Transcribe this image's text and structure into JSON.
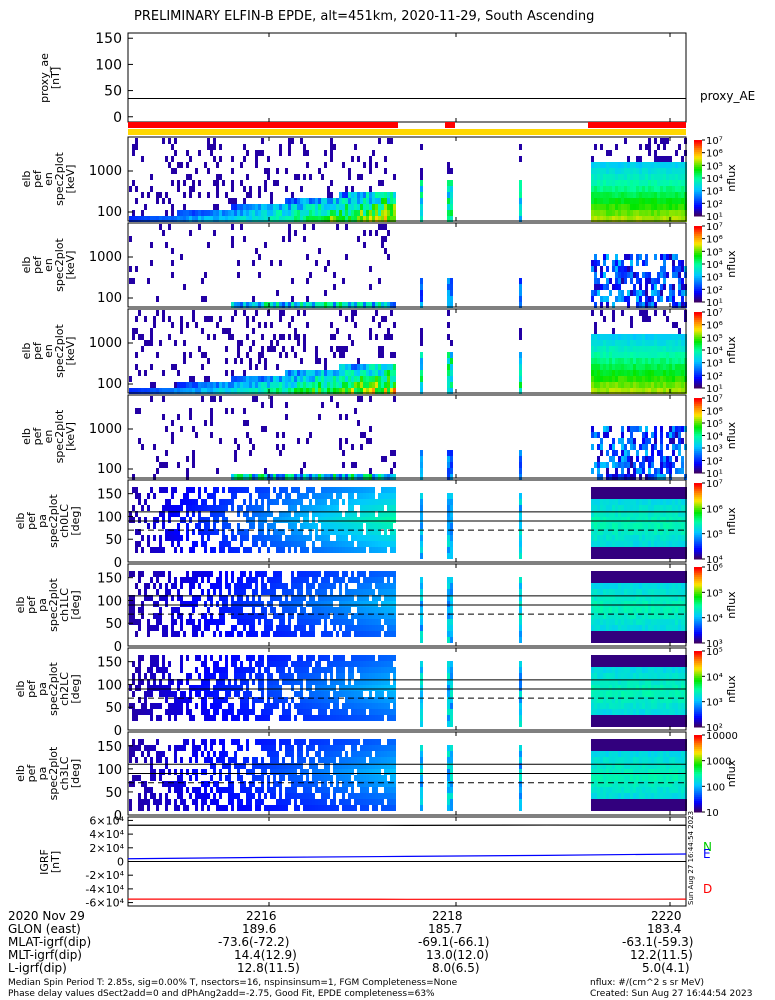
{
  "title": "PRELIMINARY ELFIN-B EPDE, alt=451km, 2020-11-29, South Ascending",
  "colors": {
    "red": "#ff0000",
    "yellow": "#ffd700",
    "green": "#00cc00",
    "blue": "#0000ff"
  },
  "chart_data": [
    {
      "type": "line",
      "panel": "proxy_ae",
      "ylabel": "proxy_ae [nT]",
      "yticks": [
        "0",
        "50",
        "100",
        "150"
      ],
      "ylim": [
        -10,
        160
      ],
      "legend": "proxy_AE",
      "value": 35
    },
    {
      "type": "heatmap",
      "panel": "elb_pef_en_spec2plot_omni",
      "ylabel": "elb pef en spec2plot [keV]",
      "yticks": [
        "100",
        "1000"
      ],
      "scale": "log",
      "zlabel": "nflux",
      "ztick_labels": [
        "10¹",
        "10²",
        "10³",
        "10⁴",
        "10⁵",
        "10⁶",
        "10⁷"
      ]
    },
    {
      "type": "heatmap",
      "panel": "elb_pef_en_spec2plot_anti",
      "ylabel": "elb pef en spec2plot [keV]",
      "yticks": [
        "100",
        "1000"
      ],
      "scale": "log",
      "zlabel": "nflux",
      "ztick_labels": [
        "10¹",
        "10²",
        "10³",
        "10⁴",
        "10⁵",
        "10⁶",
        "10⁷"
      ]
    },
    {
      "type": "heatmap",
      "panel": "elb_pef_en_spec2plot_perp",
      "ylabel": "elb pef en spec2plot [keV]",
      "yticks": [
        "100",
        "1000"
      ],
      "scale": "log",
      "zlabel": "nflux",
      "ztick_labels": [
        "10¹",
        "10²",
        "10³",
        "10⁴",
        "10⁵",
        "10⁶",
        "10⁷"
      ]
    },
    {
      "type": "heatmap",
      "panel": "elb_pef_en_spec2plot_para",
      "ylabel": "elb pef en spec2plot [keV]",
      "yticks": [
        "100",
        "1000"
      ],
      "scale": "log",
      "zlabel": "nflux",
      "ztick_labels": [
        "10¹",
        "10²",
        "10³",
        "10⁴",
        "10⁵",
        "10⁶",
        "10⁷"
      ]
    },
    {
      "type": "heatmap",
      "panel": "elb_pef_pa_spec2plot_ch0LC",
      "ylabel": "elb pef pa spec2plot ch0LC [deg]",
      "yticks": [
        "0",
        "50",
        "100",
        "150"
      ],
      "ylim": [
        0,
        180
      ],
      "zlabel": "nflux",
      "ztick_labels": [
        "10⁴",
        "10⁵",
        "10⁶",
        "10⁷"
      ],
      "lines": [
        90,
        110
      ],
      "dashed": 70
    },
    {
      "type": "heatmap",
      "panel": "elb_pef_pa_spec2plot_ch1LC",
      "ylabel": "elb pef pa spec2plot ch1LC [deg]",
      "yticks": [
        "0",
        "50",
        "100",
        "150"
      ],
      "ylim": [
        0,
        180
      ],
      "zlabel": "nflux",
      "ztick_labels": [
        "10³",
        "10⁴",
        "10⁵",
        "10⁶"
      ],
      "lines": [
        90,
        110
      ],
      "dashed": 70
    },
    {
      "type": "heatmap",
      "panel": "elb_pef_pa_spec2plot_ch2LC",
      "ylabel": "elb pef pa spec2plot ch2LC [deg]",
      "yticks": [
        "0",
        "50",
        "100",
        "150"
      ],
      "ylim": [
        0,
        180
      ],
      "zlabel": "nflux",
      "ztick_labels": [
        "10²",
        "10³",
        "10⁴",
        "10⁵"
      ],
      "lines": [
        90,
        110
      ],
      "dashed": 70
    },
    {
      "type": "heatmap",
      "panel": "elb_pef_pa_spec2plot_ch3LC",
      "ylabel": "elb pef pa spec2plot ch3LC [deg]",
      "yticks": [
        "0",
        "50",
        "100",
        "150"
      ],
      "ylim": [
        0,
        180
      ],
      "zlabel": "nflux",
      "ztick_labels": [
        "10",
        "100",
        "1000",
        "10000"
      ],
      "lines": [
        90,
        110
      ],
      "dashed": 70
    },
    {
      "type": "line",
      "panel": "igrf",
      "ylabel": "IGRF [nT]",
      "yticks": [
        "-6×10⁴",
        "-4×10⁴",
        "-2×10⁴",
        "0",
        "2×10⁴",
        "4×10⁴",
        "6×10⁴"
      ],
      "ylim": [
        -65000,
        65000
      ],
      "series": [
        {
          "name": "N",
          "values": [
            53000,
            53000,
            52800,
            53200,
            52900
          ]
        },
        {
          "name": "E",
          "values": [
            4000,
            6000,
            7500,
            9000,
            11000
          ]
        },
        {
          "name": "D",
          "values": [
            -55000,
            -55000,
            -55200,
            -55100,
            -55000
          ]
        }
      ],
      "side_text": "Sun Aug 27 16:44:54 2023"
    }
  ],
  "time_axis": {
    "date": "2020 Nov 29",
    "ticks": [
      "2216",
      "2218",
      "2220"
    ],
    "rows": [
      {
        "label": "GLON (east)",
        "values": [
          "189.6",
          "185.7",
          "183.4"
        ]
      },
      {
        "label": "MLAT-igrf(dip)",
        "values": [
          "-73.6(-72.2)",
          "-69.1(-66.1)",
          "-63.1(-59.3)"
        ]
      },
      {
        "label": "MLT-igrf(dip)",
        "values": [
          "14.4(12.9)",
          "13.0(12.0)",
          "12.2(11.5)"
        ]
      },
      {
        "label": "L-igrf(dip)",
        "values": [
          "12.8(11.5)",
          "8.0(6.5)",
          "5.0(4.1)"
        ]
      }
    ]
  },
  "footer": {
    "left1": "Median Spin Period T: 2.85s, sig=0.00% T, nsectors=16, nspinsinsum=1, FGM Completeness=None",
    "left2": "Phase delay values dSect2add=0 and dPhAng2add=-2.75, Good Fit, EPDE completeness=63%",
    "right1": "nflux: #/(cm^2 s sr MeV)",
    "right2": "Created: Sun Aug 27 16:44:54 2023"
  }
}
